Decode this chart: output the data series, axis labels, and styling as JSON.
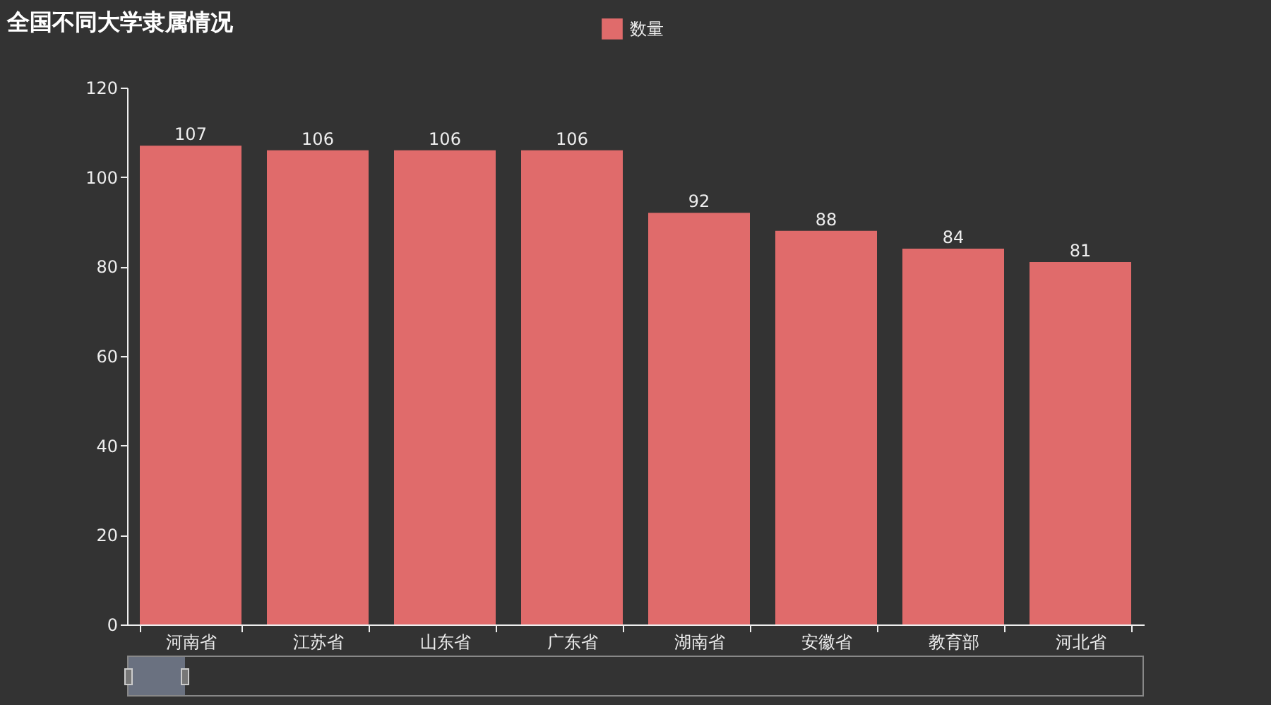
{
  "chart_data": {
    "type": "bar",
    "title": "全国不同大学隶属情况",
    "categories": [
      "河南省",
      "江苏省",
      "山东省",
      "广东省",
      "湖南省",
      "安徽省",
      "教育部",
      "河北省"
    ],
    "series": [
      {
        "name": "数量",
        "color": "#e06b6b",
        "values": [
          107,
          106,
          106,
          106,
          92,
          88,
          84,
          81
        ]
      }
    ],
    "ylim": [
      0,
      120
    ],
    "yticks": [
      0,
      20,
      40,
      60,
      80,
      100,
      120
    ],
    "grid": false,
    "legend": "top",
    "data_labels": true
  }
}
